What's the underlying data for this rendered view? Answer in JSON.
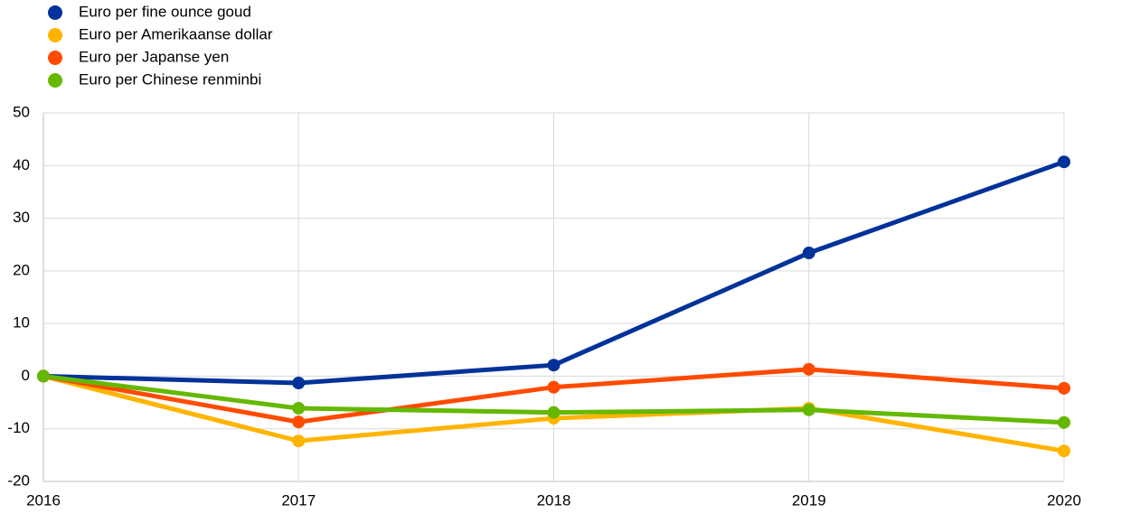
{
  "chart_data": {
    "type": "line",
    "x": [
      2016,
      2017,
      2018,
      2019,
      2020
    ],
    "xlim": [
      2016,
      2020
    ],
    "xticks": [
      2016,
      2017,
      2018,
      2019,
      2020
    ],
    "ylim": [
      -20,
      50
    ],
    "yticks": [
      -20,
      -10,
      0,
      10,
      20,
      30,
      40,
      50
    ],
    "grid": true,
    "legend": "top-left",
    "series": [
      {
        "name": "Euro per fine ounce goud",
        "color": "#003299",
        "values": [
          0,
          -1.3,
          2.1,
          23.4,
          40.7
        ]
      },
      {
        "name": "Euro per Amerikaanse dollar",
        "color": "#ffb400",
        "values": [
          0,
          -12.3,
          -8.0,
          -6.1,
          -14.2
        ]
      },
      {
        "name": "Euro per Japanse yen",
        "color": "#ff4b00",
        "values": [
          0,
          -8.7,
          -2.1,
          1.3,
          -2.3
        ]
      },
      {
        "name": "Euro per Chinese renminbi",
        "color": "#65b800",
        "values": [
          0,
          -6.1,
          -6.9,
          -6.4,
          -8.8
        ]
      }
    ]
  }
}
